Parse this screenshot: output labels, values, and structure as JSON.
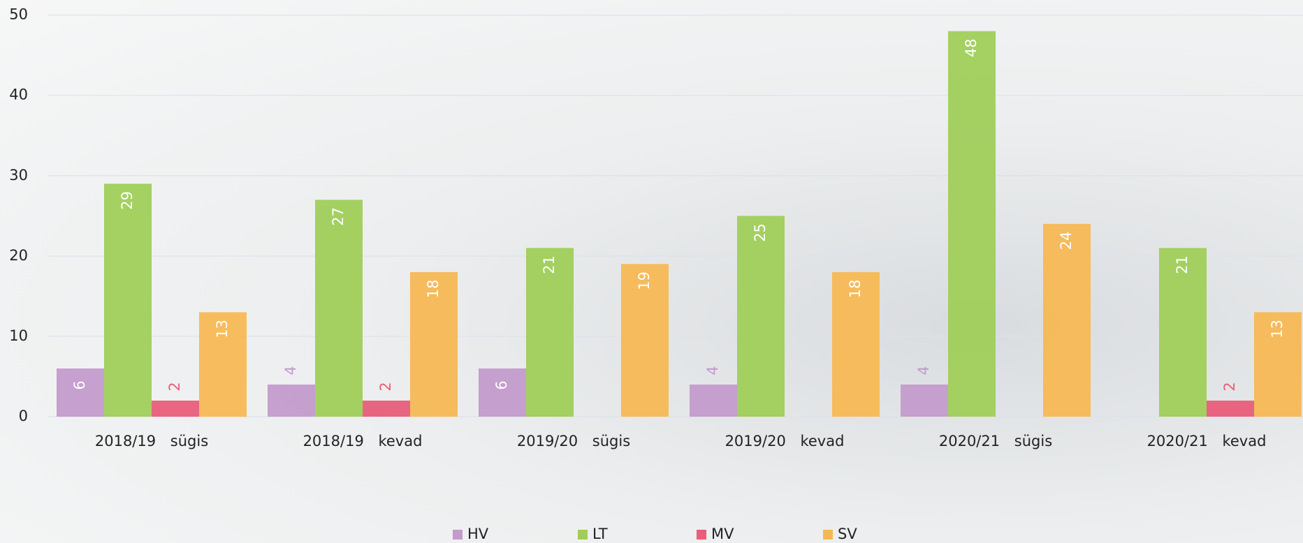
{
  "chart_data": {
    "type": "bar",
    "categories": [
      "2018/19 sügis",
      "2018/19 kevad",
      "2019/20 sügis",
      "2019/20 kevad",
      "2020/21 sügis",
      "2020/21 kevad"
    ],
    "series": [
      {
        "name": "HV",
        "color": "#c39bcb",
        "values": [
          6,
          4,
          6,
          4,
          4,
          null
        ]
      },
      {
        "name": "LT",
        "color": "#a0cd5a",
        "values": [
          29,
          27,
          21,
          25,
          48,
          21
        ]
      },
      {
        "name": "MV",
        "color": "#e85d7a",
        "values": [
          2,
          2,
          null,
          null,
          null,
          2
        ]
      },
      {
        "name": "SV",
        "color": "#f5b854",
        "values": [
          13,
          18,
          19,
          18,
          24,
          13
        ]
      }
    ],
    "ylim": [
      0,
      50
    ],
    "yticks": [
      0,
      10,
      20,
      30,
      40,
      50
    ],
    "grid": true,
    "legend": "bottom"
  }
}
